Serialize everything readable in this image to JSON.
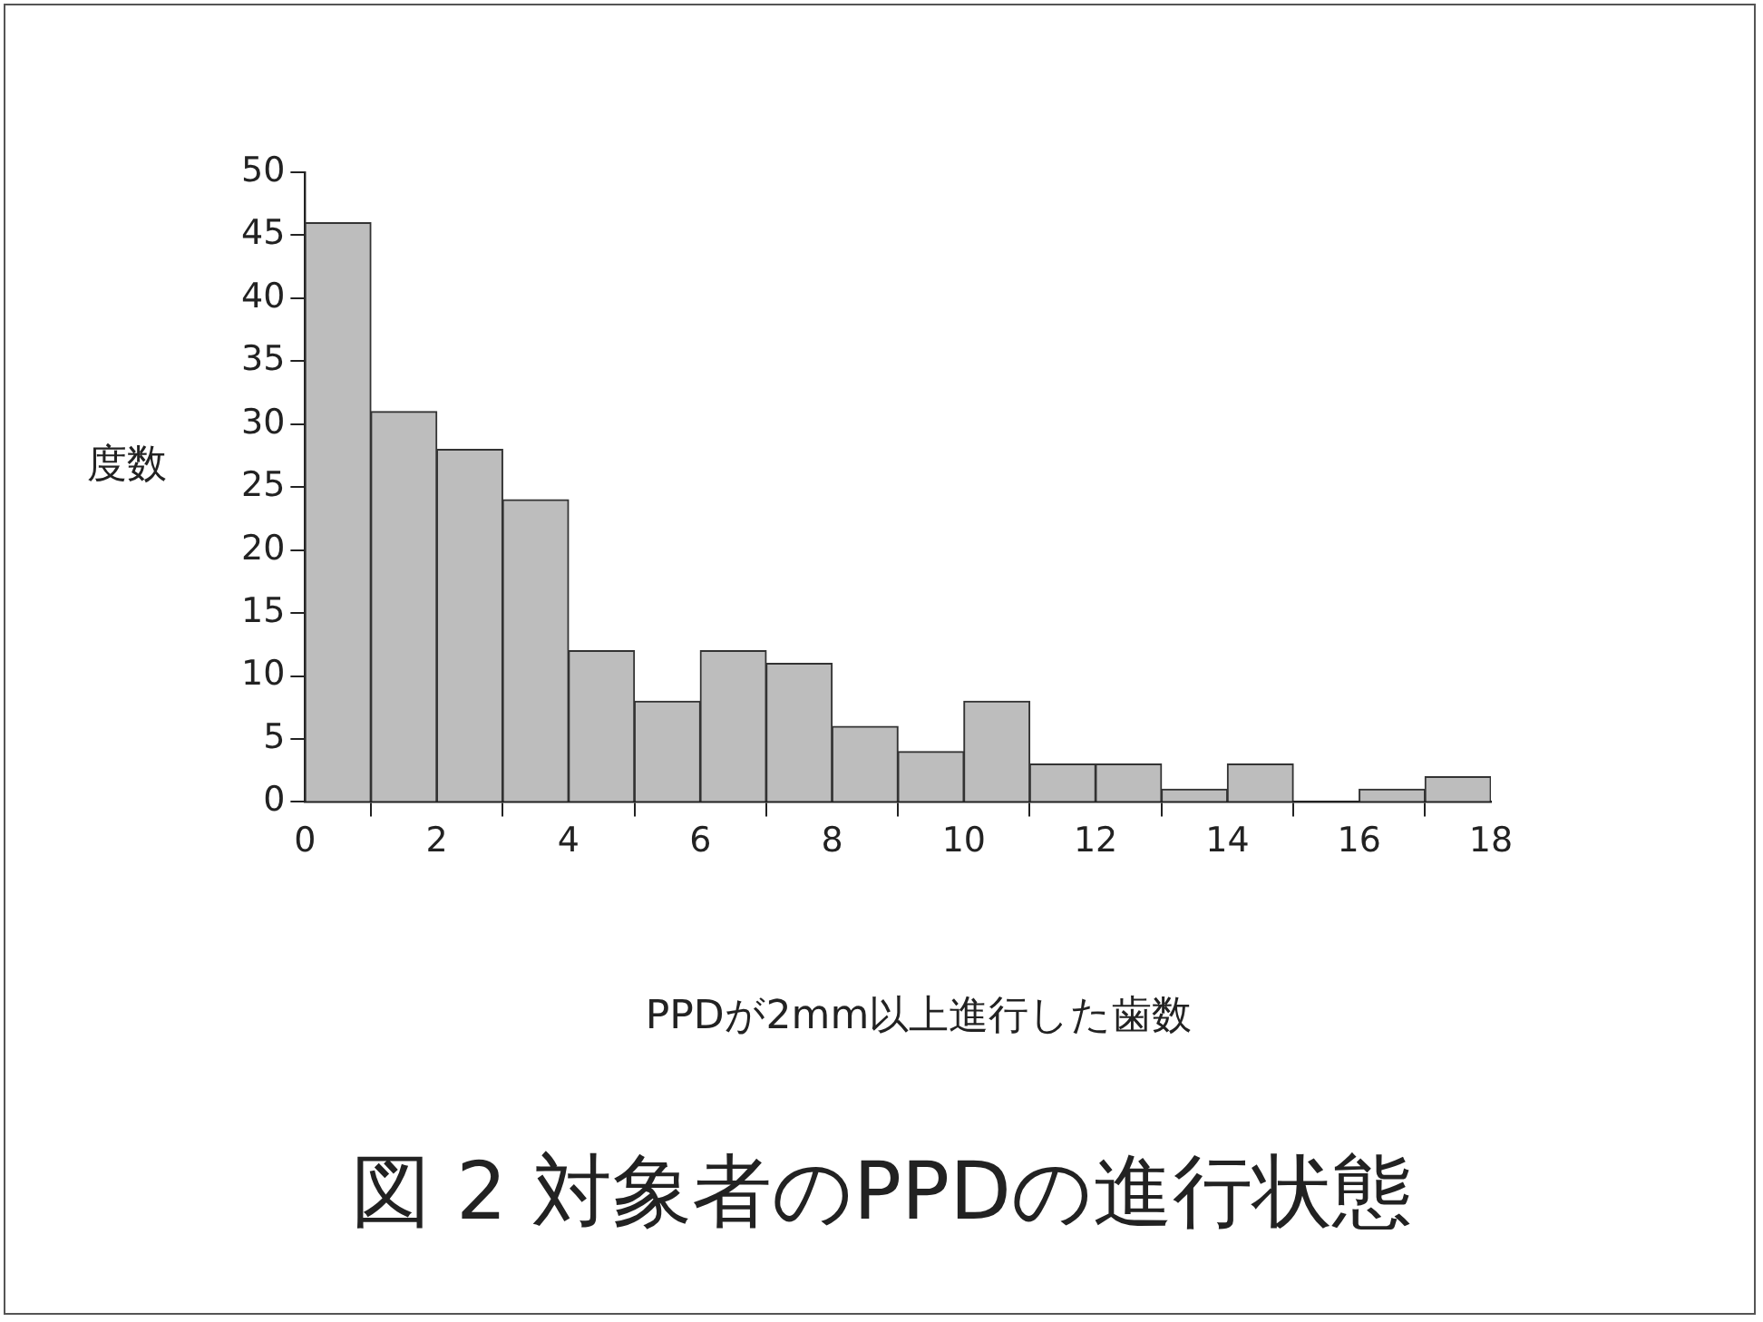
{
  "chart_data": {
    "type": "histogram",
    "title": "図 2 対象者のPPDの進行状態",
    "xlabel": "PPDが2mm以上進行した歯数",
    "ylabel": "度数",
    "bins": [
      0,
      1,
      2,
      3,
      4,
      5,
      6,
      7,
      8,
      9,
      10,
      11,
      12,
      13,
      14,
      15,
      16,
      17,
      18
    ],
    "values": [
      46,
      31,
      28,
      24,
      12,
      8,
      12,
      11,
      6,
      4,
      8,
      3,
      3,
      1,
      3,
      0,
      1,
      2
    ],
    "color": "#bdbdbd",
    "xlim": [
      0,
      18
    ],
    "xticks": [
      0,
      2,
      4,
      6,
      8,
      10,
      12,
      14,
      16,
      18
    ],
    "ylim": [
      0,
      50
    ],
    "yticks": [
      0,
      5,
      10,
      15,
      20,
      25,
      30,
      35,
      40,
      45,
      50
    ],
    "grid": false,
    "legend": false
  }
}
